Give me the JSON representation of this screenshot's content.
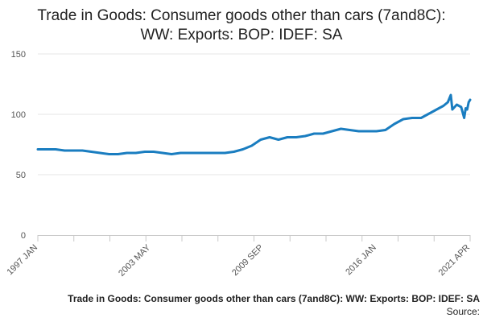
{
  "chart_data": {
    "type": "line",
    "title_lines": [
      "Trade in Goods: Consumer goods other than cars (7and8C):",
      "WW: Exports: BOP: IDEF: SA"
    ],
    "x_start": "1997 JAN",
    "x_end": "2021 APR",
    "x_tick_labels": [
      "1997 JAN",
      "2003 MAY",
      "2009 SEP",
      "2016 JAN",
      "2021 APR"
    ],
    "y_ticks": [
      0,
      50,
      100,
      150
    ],
    "ylim": [
      0,
      150
    ],
    "series": [
      {
        "color": "#1a7dc0",
        "points": [
          [
            "1997 JAN",
            71
          ],
          [
            "1997 JUL",
            71
          ],
          [
            "1998 JAN",
            71
          ],
          [
            "1998 JUL",
            70
          ],
          [
            "1999 JAN",
            70
          ],
          [
            "1999 JUL",
            70
          ],
          [
            "2000 JAN",
            69
          ],
          [
            "2000 JUL",
            68
          ],
          [
            "2001 JAN",
            67
          ],
          [
            "2001 JUL",
            67
          ],
          [
            "2002 JAN",
            68
          ],
          [
            "2002 JUL",
            68
          ],
          [
            "2003 JAN",
            69
          ],
          [
            "2003 JUL",
            69
          ],
          [
            "2004 JAN",
            68
          ],
          [
            "2004 JUL",
            67
          ],
          [
            "2005 JAN",
            68
          ],
          [
            "2005 JUL",
            68
          ],
          [
            "2006 JAN",
            68
          ],
          [
            "2006 JUL",
            68
          ],
          [
            "2007 JAN",
            68
          ],
          [
            "2007 JUL",
            68
          ],
          [
            "2008 JAN",
            69
          ],
          [
            "2008 JUL",
            71
          ],
          [
            "2009 JAN",
            74
          ],
          [
            "2009 JUL",
            79
          ],
          [
            "2010 JAN",
            81
          ],
          [
            "2010 JUL",
            79
          ],
          [
            "2011 JAN",
            81
          ],
          [
            "2011 JUL",
            81
          ],
          [
            "2012 JAN",
            82
          ],
          [
            "2012 JUL",
            84
          ],
          [
            "2013 JAN",
            84
          ],
          [
            "2013 JUL",
            86
          ],
          [
            "2014 JAN",
            88
          ],
          [
            "2014 JUL",
            87
          ],
          [
            "2015 JAN",
            86
          ],
          [
            "2015 JUL",
            86
          ],
          [
            "2016 JAN",
            86
          ],
          [
            "2016 JUL",
            87
          ],
          [
            "2017 JAN",
            92
          ],
          [
            "2017 JUL",
            96
          ],
          [
            "2018 JAN",
            97
          ],
          [
            "2018 JUL",
            97
          ],
          [
            "2019 JAN",
            101
          ],
          [
            "2019 JUL",
            105
          ],
          [
            "2019 OCT",
            107
          ],
          [
            "2020 JAN",
            110
          ],
          [
            "2020 MAR",
            116
          ],
          [
            "2020 APR",
            104
          ],
          [
            "2020 JUL",
            108
          ],
          [
            "2020 OCT",
            106
          ],
          [
            "2020 DEC",
            97
          ],
          [
            "2021 JAN",
            105
          ],
          [
            "2021 FEB",
            104
          ],
          [
            "2021 MAR",
            110
          ],
          [
            "2021 APR",
            112
          ]
        ]
      }
    ]
  },
  "footer": {
    "title": "Trade in Goods: Consumer goods other than cars (7and8C): WW: Exports: BOP: IDEF: SA",
    "source": "Source:"
  }
}
